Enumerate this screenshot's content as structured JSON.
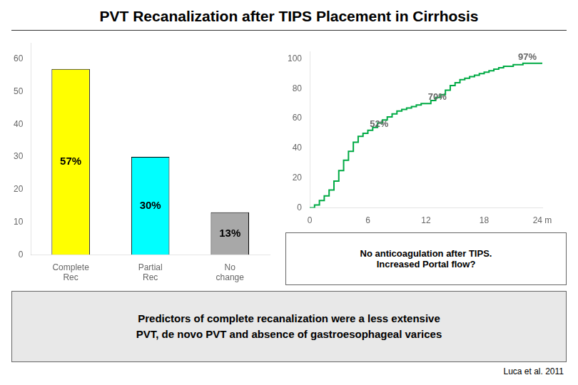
{
  "chart_data": [
    {
      "type": "bar",
      "title": "PVT Recanalization after TIPS Placement in Cirrhosis",
      "categories": [
        "Complete\nRec",
        "Partial\nRec",
        "No\nchange"
      ],
      "values": [
        57,
        30,
        13
      ],
      "value_labels": [
        "57%",
        "30%",
        "13%"
      ],
      "data_labels": true,
      "colors": [
        "#FFFF00",
        "#00FFFF",
        "#A8A8A8"
      ],
      "ylim": [
        0,
        65
      ],
      "yticks": [
        0,
        10,
        20,
        30,
        40,
        50,
        60
      ],
      "grid": false
    },
    {
      "type": "line",
      "line_style": "steps",
      "color": "#00AA44",
      "x": [
        0,
        0.5,
        1,
        1.5,
        2,
        2.5,
        3,
        3.5,
        4,
        4.5,
        5,
        5.5,
        6,
        6.5,
        7,
        7.5,
        8,
        8.5,
        9,
        9.5,
        10,
        10.5,
        11,
        11.5,
        12,
        12.5,
        13,
        13.5,
        14,
        14.5,
        15,
        15.5,
        16,
        16.5,
        17,
        17.5,
        18,
        18.5,
        19,
        19.5,
        20,
        20.5,
        21,
        21.5,
        22,
        22.5,
        23,
        23.5,
        24
      ],
      "values": [
        0,
        2,
        5,
        8,
        12,
        18,
        25,
        32,
        38,
        44,
        48,
        50,
        52,
        54,
        57,
        59,
        61,
        63,
        65,
        66,
        67,
        68,
        69,
        70,
        70,
        72,
        74,
        76,
        79,
        82,
        84,
        86,
        87,
        88,
        89,
        90,
        91,
        92,
        93,
        94,
        95,
        95,
        96,
        96,
        97,
        97,
        97,
        97,
        97
      ],
      "xlim": [
        0,
        24
      ],
      "xticks": [
        0,
        6,
        12,
        18,
        {
          "value": 24,
          "label": "24 m"
        }
      ],
      "ylim": [
        0,
        105
      ],
      "yticks": [
        0,
        20,
        40,
        60,
        80,
        100
      ],
      "grid": false,
      "annotations": [
        {
          "x": 6.2,
          "y": 53,
          "text": "52%"
        },
        {
          "x": 12.2,
          "y": 71,
          "text": "70%"
        },
        {
          "x": 21.5,
          "y": 98,
          "text": "97%"
        },
        {
          "text": "No anticoagulation after TIPS.\nIncreased Portal flow?"
        },
        {
          "text": "Predictors of complete recanalization were a less extensive\nPVT, de novo PVT and absence of gastroesophageal varices"
        },
        {
          "text": "Luca et al. 2011"
        }
      ]
    }
  ]
}
